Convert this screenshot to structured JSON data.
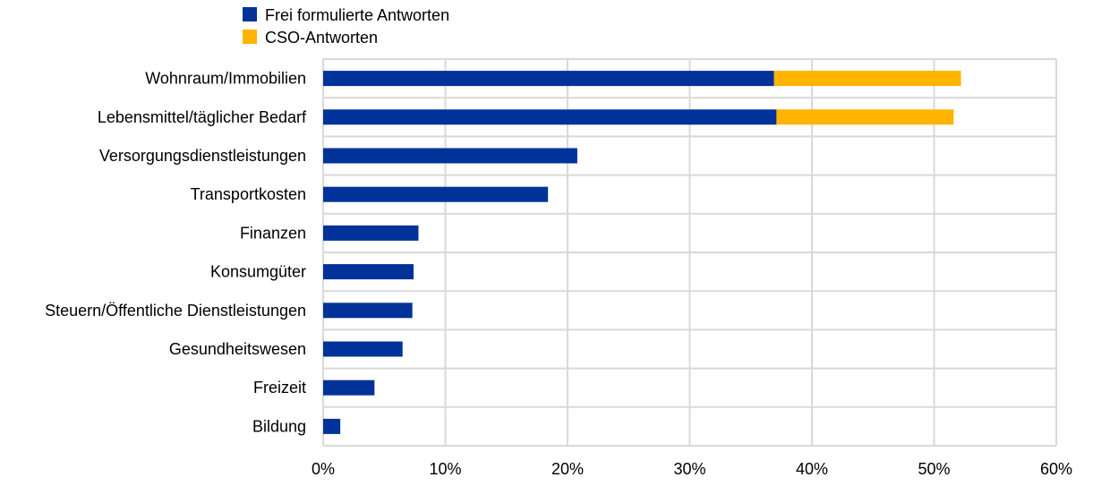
{
  "chart_data": {
    "type": "bar",
    "orientation": "horizontal",
    "stacked": true,
    "categories": [
      "Wohnraum/Immobilien",
      "Lebensmittel/täglicher Bedarf",
      "Versorgungsdienstleistungen",
      "Transportkosten",
      "Finanzen",
      "Konsumgüter",
      "Steuern/Öffentliche Dienstleistungen",
      "Gesundheitswesen",
      "Freizeit",
      "Bildung"
    ],
    "series": [
      {
        "name": "Frei formulierte Antworten",
        "color": "#003299",
        "values": [
          36.9,
          37.1,
          20.8,
          18.4,
          7.8,
          7.4,
          7.3,
          6.5,
          4.2,
          1.4
        ]
      },
      {
        "name": "CSO-Antworten",
        "color": "#FFB400",
        "values": [
          15.3,
          14.5,
          0,
          0,
          0,
          0,
          0,
          0,
          0,
          0
        ]
      }
    ],
    "xlim": [
      0,
      60
    ],
    "xticks": [
      0,
      10,
      20,
      30,
      40,
      50,
      60
    ],
    "xtick_labels": [
      "0%",
      "10%",
      "20%",
      "30%",
      "40%",
      "50%",
      "60%"
    ],
    "grid": true,
    "legend_position": "top"
  }
}
